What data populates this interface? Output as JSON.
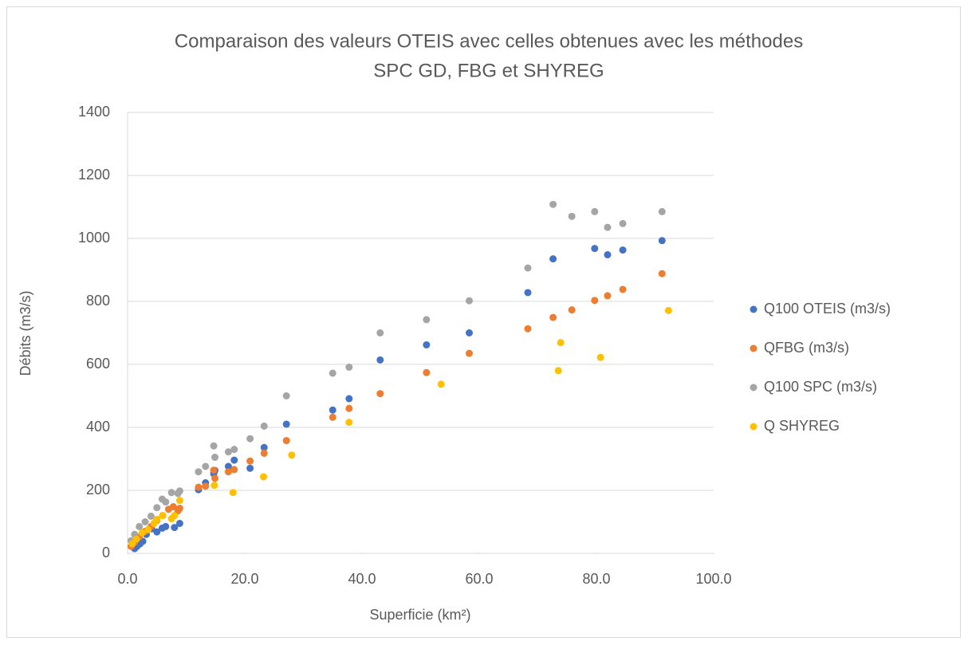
{
  "chart_data": {
    "type": "scatter",
    "title": [
      "Comparaison des valeurs OTEIS avec celles obtenues avec les méthodes",
      "SPC GD, FBG et SHYREG"
    ],
    "x_label": "Superficie (km²)",
    "y_label": "Débits (m3/s)",
    "xlim": [
      0,
      100
    ],
    "xticks": [
      {
        "value": 0,
        "label": "0.0"
      },
      {
        "value": 20,
        "label": "20.0"
      },
      {
        "value": 40,
        "label": "40.0"
      },
      {
        "value": 60,
        "label": "60.0"
      },
      {
        "value": 80,
        "label": "80.0"
      },
      {
        "value": 100,
        "label": "100.0"
      }
    ],
    "ylim": [
      0,
      1400
    ],
    "yticks": [
      0,
      200,
      400,
      600,
      800,
      1000,
      1200,
      1400
    ],
    "grid": true,
    "legend": "right",
    "series": [
      {
        "name": "Q100 OTEIS (m3/s)",
        "color": "#4472c4",
        "x": [
          91.2,
          84.5,
          81.9,
          79.7,
          72.6,
          68.3,
          58.3,
          51.0,
          43.1,
          37.8,
          35.0,
          27.1,
          23.3,
          20.9,
          18.2,
          17.2,
          14.9,
          14.7,
          13.3,
          12.1,
          8.9,
          8.0,
          6.5,
          5.9,
          5.0,
          4.1,
          3.2,
          2.6,
          2.1,
          1.6,
          1.2,
          0.8
        ],
        "values": [
          993,
          963,
          948,
          968,
          935,
          828,
          700,
          662,
          614,
          491,
          455,
          410,
          336,
          270,
          296,
          276,
          263,
          253,
          224,
          202,
          95,
          82,
          85,
          80,
          68,
          78,
          60,
          38,
          30,
          22,
          15,
          28
        ]
      },
      {
        "name": "QFBG (m3/s)",
        "color": "#ed7d31",
        "x": [
          91.2,
          84.5,
          81.9,
          79.7,
          75.8,
          72.6,
          68.3,
          58.3,
          51.0,
          43.1,
          37.8,
          35.0,
          27.1,
          23.3,
          20.9,
          18.2,
          17.2,
          14.9,
          14.7,
          13.3,
          12.1,
          8.9,
          8.6,
          7.8,
          7.0,
          6.0,
          5.0,
          4.0,
          3.0,
          2.0,
          1.2,
          0.6
        ],
        "values": [
          888,
          838,
          818,
          803,
          773,
          749,
          713,
          635,
          574,
          507,
          460,
          432,
          358,
          318,
          293,
          266,
          259,
          238,
          264,
          213,
          210,
          143,
          135,
          148,
          140,
          120,
          105,
          85,
          70,
          52,
          35,
          22
        ]
      },
      {
        "name": "Q100 SPC (m3/s)",
        "color": "#a5a5a5",
        "x": [
          91.2,
          84.5,
          81.9,
          79.7,
          75.8,
          72.6,
          68.3,
          58.3,
          51.0,
          43.1,
          37.8,
          35.0,
          27.1,
          23.3,
          20.9,
          18.2,
          17.2,
          14.9,
          14.7,
          13.3,
          12.1,
          8.9,
          8.6,
          7.5,
          6.5,
          5.9,
          5.0,
          4.0,
          3.0,
          2.0,
          1.2,
          0.6
        ],
        "values": [
          1085,
          1047,
          1035,
          1085,
          1070,
          1108,
          906,
          802,
          742,
          700,
          591,
          572,
          500,
          404,
          364,
          330,
          322,
          305,
          341,
          276,
          259,
          198,
          190,
          193,
          163,
          172,
          145,
          118,
          100,
          85,
          60,
          40
        ]
      },
      {
        "name": "Q SHYREG",
        "color": "#ffc000",
        "x": [
          92.3,
          80.7,
          73.9,
          73.5,
          53.5,
          37.8,
          28.0,
          23.2,
          18.0,
          14.8,
          8.9,
          8.0,
          7.5,
          6.0,
          5.0,
          4.5,
          3.5,
          2.5,
          1.5,
          0.8
        ],
        "values": [
          771,
          622,
          669,
          580,
          537,
          416,
          312,
          243,
          193,
          216,
          168,
          120,
          110,
          120,
          108,
          95,
          75,
          65,
          45,
          30
        ]
      }
    ]
  }
}
